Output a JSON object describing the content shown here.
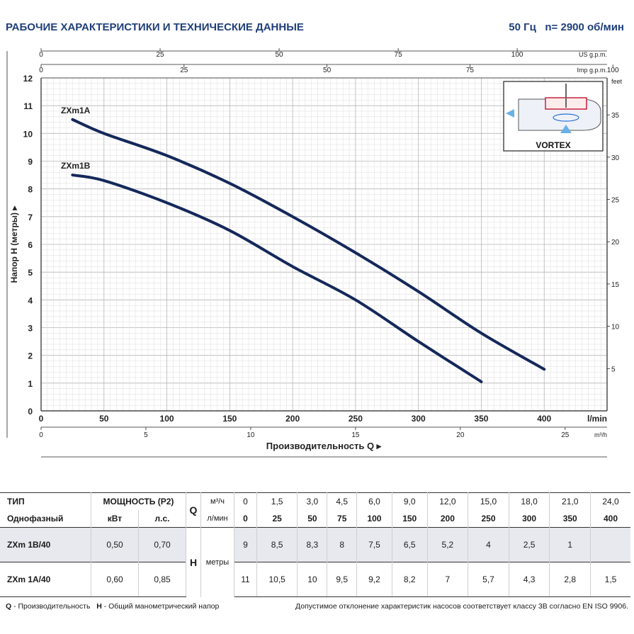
{
  "header": {
    "title": "РАБОЧИЕ ХАРАКТЕРИСТИКИ И ТЕХНИЧЕСКИЕ ДАННЫЕ",
    "freq": "50 Гц",
    "speed": "n= 2900 об/мин"
  },
  "chart_data": {
    "type": "line",
    "ylabel": "Напор H (метры)",
    "xlabel": "Производительность Q",
    "x_unit_primary": "l/min",
    "x_unit_m3h": "m³/h",
    "x_unit_us": "US g.p.m.",
    "x_unit_imp": "Imp g.p.m.",
    "y_unit_feet": "feet",
    "xlim": [
      0,
      450
    ],
    "ylim": [
      0,
      12
    ],
    "x_ticks_lmin": [
      0,
      50,
      100,
      150,
      200,
      250,
      300,
      350,
      400
    ],
    "x_ticks_m3h": [
      0,
      5,
      10,
      15,
      20,
      25
    ],
    "x_ticks_us": [
      0,
      25,
      50,
      75,
      100
    ],
    "x_ticks_imp": [
      0,
      25,
      50,
      75,
      100
    ],
    "y_ticks_m": [
      0,
      1,
      2,
      3,
      4,
      5,
      6,
      7,
      8,
      9,
      10,
      11,
      12
    ],
    "y_ticks_feet": [
      5,
      10,
      15,
      20,
      25,
      30,
      35
    ],
    "grid": true,
    "series": [
      {
        "name": "ZXm1A",
        "x": [
          25,
          50,
          100,
          150,
          200,
          250,
          300,
          350,
          400
        ],
        "y": [
          10.5,
          10.0,
          9.2,
          8.2,
          7.0,
          5.7,
          4.3,
          2.8,
          1.5
        ]
      },
      {
        "name": "ZXm1B",
        "x": [
          25,
          50,
          100,
          150,
          200,
          250,
          300,
          350
        ],
        "y": [
          8.5,
          8.3,
          7.5,
          6.5,
          5.2,
          4.0,
          2.5,
          1.05
        ]
      }
    ],
    "inset_label": "VORTEX"
  },
  "table": {
    "h_type": "ТИП",
    "h_single": "Однофазный",
    "h_power": "МОЩНОСТЬ (P2)",
    "h_kw": "кВт",
    "h_hp": "л.с.",
    "h_q": "Q",
    "h_m3h": "м³/ч",
    "h_lmin": "л/мин",
    "h_h": "H",
    "h_m": "метры",
    "q_m3h": [
      "0",
      "1,5",
      "3,0",
      "4,5",
      "6,0",
      "9,0",
      "12,0",
      "15,0",
      "18,0",
      "21,0",
      "24,0"
    ],
    "q_lmin": [
      "0",
      "25",
      "50",
      "75",
      "100",
      "150",
      "200",
      "250",
      "300",
      "350",
      "400"
    ],
    "rows": [
      {
        "model": "ZXm 1B/40",
        "kw": "0,50",
        "hp": "0,70",
        "h": [
          "9",
          "8,5",
          "8,3",
          "8",
          "7,5",
          "6,5",
          "5,2",
          "4",
          "2,5",
          "1",
          ""
        ]
      },
      {
        "model": "ZXm 1A/40",
        "kw": "0,60",
        "hp": "0,85",
        "h": [
          "11",
          "10,5",
          "10",
          "9,5",
          "9,2",
          "8,2",
          "7",
          "5,7",
          "4,3",
          "2,8",
          "1,5"
        ]
      }
    ]
  },
  "footer": {
    "q_key": "Q",
    "q_desc": "- Производительность",
    "h_key": "H",
    "h_desc": "- Общий манометрический напор",
    "note": "Допустимое отклонение характеристик насосов соответствует классу 3B согласно EN ISO 9906."
  }
}
